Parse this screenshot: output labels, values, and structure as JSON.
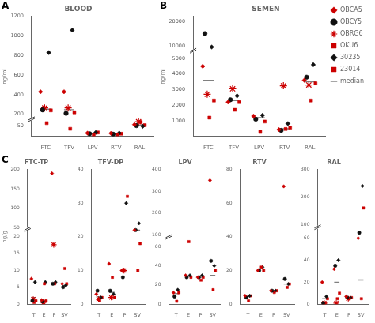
{
  "chart_data": [
    {
      "type": "scatter",
      "title": "BLOOD",
      "annotation": "A",
      "ylabel": "ng/ml",
      "categories": [
        "FTC",
        "TFV",
        "LPV",
        "RTV",
        "RAL"
      ],
      "series": [
        {
          "name": "OBCA5",
          "color": "#cc0000",
          "marker": "diamond",
          "values": [
            430,
            430,
            15,
            14,
            55
          ]
        },
        {
          "name": "OBCY5",
          "color": "#111111",
          "marker": "circle",
          "values": [
            245,
            210,
            12,
            10,
            50
          ]
        },
        {
          "name": "OBRG6",
          "color": "#cc0000",
          "marker": "star",
          "values": [
            265,
            265,
            null,
            null,
            68
          ]
        },
        {
          "name": "OKU6",
          "color": "#cc0000",
          "marker": "square",
          "values": [
            110,
            35,
            8,
            8,
            67
          ]
        },
        {
          "name": "30235",
          "color": "#111111",
          "marker": "diamond",
          "values": [
            830,
            1060,
            18,
            15,
            47
          ]
        },
        {
          "name": "23014",
          "color": "#cc0000",
          "marker": "square",
          "values": [
            240,
            220,
            18,
            12,
            52
          ]
        },
        {
          "name": "median",
          "color": "#808080",
          "marker": "dash",
          "values": [
            252,
            247,
            14,
            11,
            53
          ]
        }
      ],
      "ylim": [
        0,
        1200
      ],
      "yticks": [
        50,
        200,
        400,
        600,
        800,
        1000,
        1200
      ],
      "ybreak": [
        80,
        150
      ],
      "grid": false
    },
    {
      "type": "scatter",
      "title": "SEMEN",
      "annotation": "B",
      "ylabel": "ng/ml",
      "legend": "right",
      "categories": [
        "FTC",
        "TFV",
        "LPV",
        "RTV",
        "RAL"
      ],
      "series": [
        {
          "name": "OBCA5",
          "color": "#cc0000",
          "marker": "diamond",
          "values": [
            4500,
            2200,
            1300,
            430,
            3600
          ]
        },
        {
          "name": "OBCY5",
          "color": "#111111",
          "marker": "circle",
          "values": [
            15000,
            2350,
            1100,
            380,
            3800
          ]
        },
        {
          "name": "OBRG6",
          "color": "#cc0000",
          "marker": "star",
          "values": [
            2700,
            3050,
            null,
            3250,
            3300
          ]
        },
        {
          "name": "OKU6",
          "color": "#cc0000",
          "marker": "square",
          "values": [
            1200,
            1700,
            280,
            470,
            2300
          ]
        },
        {
          "name": "30235",
          "color": "#111111",
          "marker": "diamond",
          "values": [
            9500,
            2600,
            1350,
            820,
            4600
          ]
        },
        {
          "name": "23014",
          "color": "#cc0000",
          "marker": "square",
          "values": [
            2300,
            2200,
            950,
            560,
            3400
          ]
        },
        {
          "name": "median",
          "color": "#808080",
          "marker": "dash",
          "values": [
            3600,
            2300,
            1200,
            490,
            3500
          ]
        }
      ],
      "ylim": [
        0,
        22000
      ],
      "yticks": [
        1000,
        2000,
        3000,
        4000,
        5000,
        10000,
        20000
      ],
      "ybreak": [
        5500,
        8000
      ],
      "grid": false
    },
    {
      "type": "scatter",
      "title": "FTC-TP",
      "annotation": "C",
      "ylabel": "ng/g",
      "categories": [
        "T",
        "E",
        "P",
        "SV"
      ],
      "series": [
        {
          "name": "OBCA5",
          "color": "#cc0000",
          "marker": "diamond",
          "values": [
            7.5,
            1.2,
            190,
            6
          ]
        },
        {
          "name": "OBCY5",
          "color": "#111111",
          "marker": "circle",
          "values": [
            1.0,
            0.8,
            6,
            5
          ]
        },
        {
          "name": "OBRG6",
          "color": "#cc0000",
          "marker": "star",
          "values": [
            1.5,
            0.5,
            17.5,
            null
          ]
        },
        {
          "name": "OKU6",
          "color": "#cc0000",
          "marker": "square",
          "values": [
            0.5,
            6.0,
            6.0,
            10.5
          ]
        },
        {
          "name": "30235",
          "color": "#111111",
          "marker": "diamond",
          "values": [
            6.5,
            6.5,
            6.5,
            5.5
          ]
        },
        {
          "name": "23014",
          "color": "#cc0000",
          "marker": "square",
          "values": [
            1.0,
            1.0,
            null,
            6.0
          ]
        },
        {
          "name": "median",
          "color": "#808080",
          "marker": "dash",
          "values": [
            2.0,
            1.1,
            6.0,
            5.5
          ]
        }
      ],
      "ylim": [
        0,
        200
      ],
      "yticks": [
        0,
        5,
        10,
        15,
        20,
        50,
        100,
        150,
        200
      ],
      "ybreak": [
        22,
        45
      ],
      "grid": false
    },
    {
      "type": "scatter",
      "title": "TFV-DP",
      "categories": [
        "T",
        "E",
        "P",
        "SV"
      ],
      "series": [
        {
          "name": "OBCA5",
          "color": "#cc0000",
          "marker": "diamond",
          "values": [
            3.0,
            12,
            10,
            22
          ]
        },
        {
          "name": "OBCY5",
          "color": "#111111",
          "marker": "circle",
          "values": [
            4.0,
            4,
            8,
            22
          ]
        },
        {
          "name": "OBRG6",
          "color": "#cc0000",
          "marker": "star",
          "values": [
            1.5,
            2,
            10,
            null
          ]
        },
        {
          "name": "OKU6",
          "color": "#cc0000",
          "marker": "square",
          "values": [
            1.0,
            8,
            null,
            10
          ]
        },
        {
          "name": "30235",
          "color": "#111111",
          "marker": "diamond",
          "values": [
            2.0,
            3,
            30,
            24
          ]
        },
        {
          "name": "23014",
          "color": "#cc0000",
          "marker": "square",
          "values": [
            2.0,
            2,
            32,
            18
          ]
        },
        {
          "name": "median",
          "color": "#808080",
          "marker": "dash",
          "values": [
            2.2,
            3.5,
            10.0,
            22.0
          ]
        }
      ],
      "ylim": [
        0,
        40
      ],
      "yticks": [
        0,
        10,
        20,
        30,
        40
      ],
      "grid": false
    },
    {
      "type": "scatter",
      "title": "LPV",
      "categories": [
        "T",
        "E",
        "P",
        "SV"
      ],
      "series": [
        {
          "name": "OBCA5",
          "color": "#cc0000",
          "marker": "diamond",
          "values": [
            12,
            30,
            28,
            350
          ]
        },
        {
          "name": "OBCY5",
          "color": "#111111",
          "marker": "circle",
          "values": [
            8,
            28,
            28,
            45
          ]
        },
        {
          "name": "OBRG6",
          "color": "#cc0000",
          "marker": "star",
          "values": [
            null,
            null,
            null,
            null
          ]
        },
        {
          "name": "OKU6",
          "color": "#cc0000",
          "marker": "square",
          "values": [
            3,
            65,
            25,
            15
          ]
        },
        {
          "name": "30235",
          "color": "#111111",
          "marker": "diamond",
          "values": [
            15,
            30,
            30,
            40
          ]
        },
        {
          "name": "23014",
          "color": "#cc0000",
          "marker": "square",
          "values": [
            12,
            28,
            28,
            35
          ]
        },
        {
          "name": "median",
          "color": "#808080",
          "marker": "dash",
          "values": [
            11,
            29,
            28,
            30
          ]
        }
      ],
      "ylim": [
        0,
        400
      ],
      "yticks": [
        0,
        20,
        40,
        60,
        100,
        200,
        300,
        400
      ],
      "ybreak": [
        70,
        90
      ],
      "grid": false
    },
    {
      "type": "scatter",
      "title": "RTV",
      "categories": [
        "T",
        "E",
        "P",
        "SV"
      ],
      "series": [
        {
          "name": "OBCA5",
          "color": "#cc0000",
          "marker": "diamond",
          "values": [
            5,
            20,
            8,
            70
          ]
        },
        {
          "name": "OBCY5",
          "color": "#111111",
          "marker": "circle",
          "values": [
            4,
            20,
            8,
            15
          ]
        },
        {
          "name": "OBRG6",
          "color": "#cc0000",
          "marker": "star",
          "values": [
            null,
            null,
            null,
            null
          ]
        },
        {
          "name": "OKU6",
          "color": "#cc0000",
          "marker": "square",
          "values": [
            2,
            22,
            7,
            10
          ]
        },
        {
          "name": "30235",
          "color": "#111111",
          "marker": "diamond",
          "values": [
            5,
            22,
            8,
            12
          ]
        },
        {
          "name": "23014",
          "color": "#cc0000",
          "marker": "square",
          "values": [
            5,
            20,
            8,
            12
          ]
        },
        {
          "name": "median",
          "color": "#808080",
          "marker": "dash",
          "values": [
            4.5,
            21,
            8,
            12
          ]
        }
      ],
      "ylim": [
        0,
        80
      ],
      "yticks": [
        0,
        20,
        40,
        60,
        80
      ],
      "grid": false
    },
    {
      "type": "scatter",
      "title": "RAL",
      "categories": [
        "T",
        "E",
        "P",
        "SV"
      ],
      "series": [
        {
          "name": "OBCA5",
          "color": "#cc0000",
          "marker": "diamond",
          "values": [
            20,
            32,
            7,
            60
          ]
        },
        {
          "name": "OBCY5",
          "color": "#111111",
          "marker": "circle",
          "values": [
            1,
            35,
            6,
            65
          ]
        },
        {
          "name": "OBRG6",
          "color": "#cc0000",
          "marker": "star",
          "values": [
            1,
            1,
            5,
            null
          ]
        },
        {
          "name": "OKU6",
          "color": "#cc0000",
          "marker": "square",
          "values": [
            1,
            5,
            5,
            5
          ]
        },
        {
          "name": "30235",
          "color": "#111111",
          "marker": "diamond",
          "values": [
            7,
            40,
            6,
            240
          ]
        },
        {
          "name": "23014",
          "color": "#cc0000",
          "marker": "square",
          "values": [
            5,
            10,
            6,
            160
          ]
        },
        {
          "name": "median",
          "color": "#808080",
          "marker": "dash",
          "values": [
            5,
            20,
            6,
            22
          ]
        }
      ],
      "ylim": [
        0,
        300
      ],
      "yticks": [
        0,
        20,
        40,
        60,
        100,
        200,
        300
      ],
      "ybreak": [
        70,
        90
      ],
      "grid": false
    }
  ]
}
